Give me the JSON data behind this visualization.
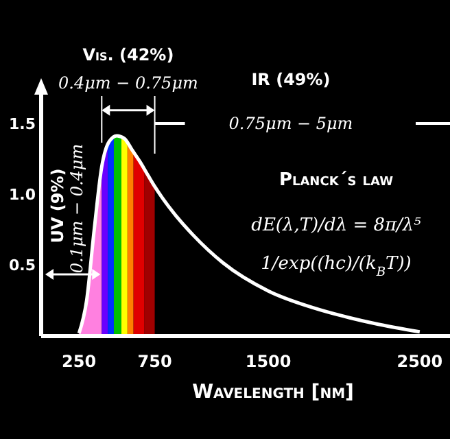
{
  "chart_data": {
    "type": "line",
    "xlabel": "Wavelength [nm]",
    "x": [
      250,
      300,
      350,
      400,
      450,
      500,
      550,
      600,
      650,
      700,
      750,
      800,
      900,
      1000,
      1200,
      1500,
      1800,
      2000,
      2200,
      2500
    ],
    "series": [
      {
        "color": "#ffffff",
        "values": [
          0.02,
          0.25,
          0.75,
          1.2,
          1.38,
          1.42,
          1.4,
          1.32,
          1.24,
          1.15,
          1.06,
          0.98,
          0.84,
          0.72,
          0.52,
          0.32,
          0.2,
          0.14,
          0.09,
          0.03
        ]
      }
    ],
    "xlim": [
      0,
      2700
    ],
    "xticks": [
      250,
      750,
      1500,
      2500
    ],
    "ylim": [
      0,
      1.75
    ],
    "yticks": [
      {
        "value": 0.5,
        "label": "0.5"
      },
      {
        "value": 1.0,
        "label": "1.0"
      },
      {
        "value": 1.5,
        "label": "1.5"
      }
    ],
    "grid": false,
    "marker": "none",
    "line_style": "solid",
    "bands": [
      {
        "axis": "x",
        "from": 100,
        "to": 400,
        "color": "#ff80e0"
      },
      {
        "axis": "x",
        "from": 400,
        "to": 440,
        "color": "#6a00ff"
      },
      {
        "axis": "x",
        "from": 440,
        "to": 480,
        "color": "#0030ff"
      },
      {
        "axis": "x",
        "from": 480,
        "to": 530,
        "color": "#00c000"
      },
      {
        "axis": "x",
        "from": 530,
        "to": 570,
        "color": "#ffff00"
      },
      {
        "axis": "x",
        "from": 570,
        "to": 610,
        "color": "#ff8000"
      },
      {
        "axis": "x",
        "from": 610,
        "to": 680,
        "color": "#e00000"
      },
      {
        "axis": "x",
        "from": 680,
        "to": 750,
        "color": "#a00000"
      }
    ],
    "annotations": [
      "Vis. (42%)",
      {
        "text": "0.4μm − 0.75μm",
        "x": 575,
        "y": 1.6
      },
      "IR (49%)",
      "0.75μm − 5μm",
      "UV (9%)",
      "0.1μm − 0.4μm",
      "Planck´s law",
      "dE(λ,T)/dλ = 8π/λ⁵",
      "1/exp((hc)/(k$_{B}$T))"
    ]
  }
}
